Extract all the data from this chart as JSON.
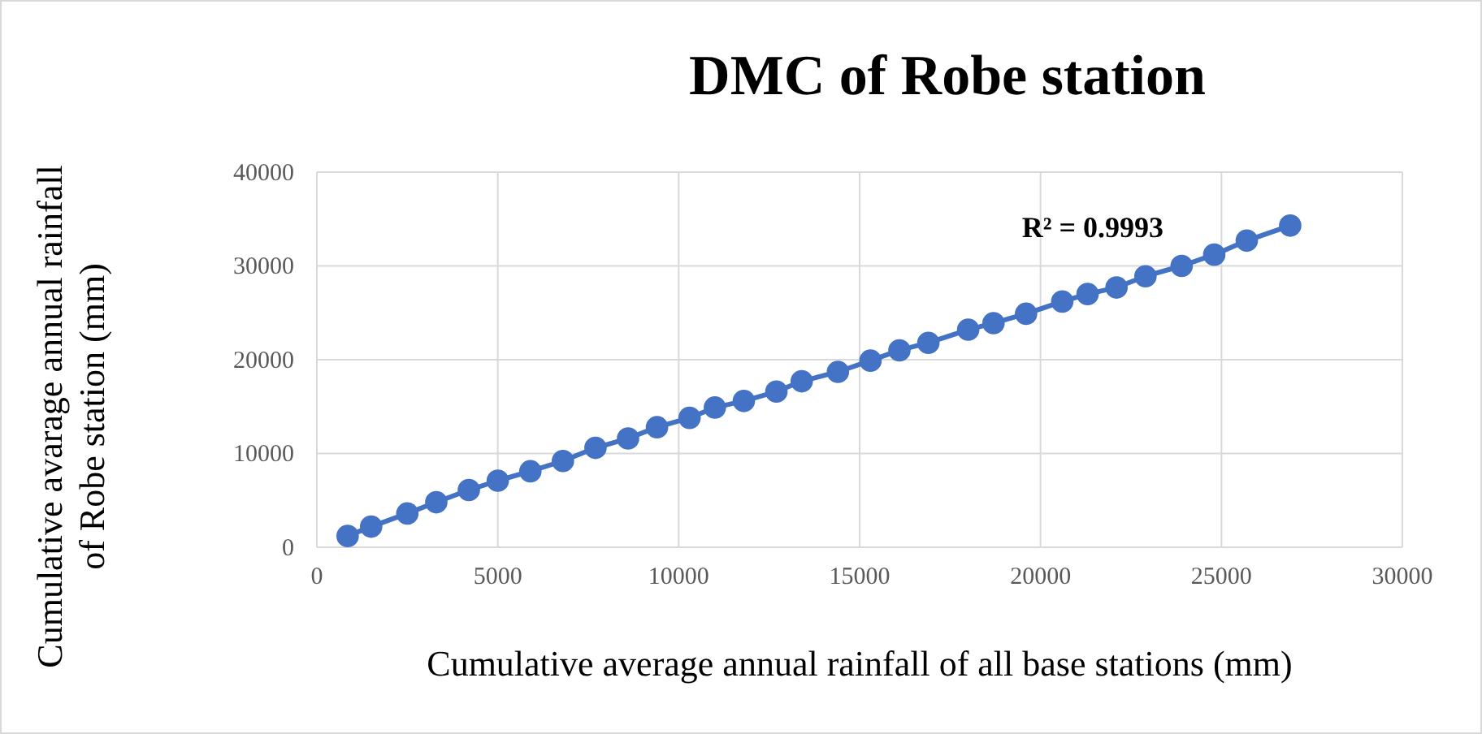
{
  "chart_data": {
    "type": "line",
    "title": "DMC of Robe station",
    "xlabel": "Cumulative average annual rainfall of all base stations (mm)",
    "ylabel": "Cumulative avarage annual rainfall of Robe station (mm)",
    "x": [
      850,
      1500,
      2500,
      3300,
      4200,
      5000,
      5900,
      6800,
      7700,
      8600,
      9400,
      10300,
      11000,
      11800,
      12700,
      13400,
      14400,
      15300,
      16100,
      16900,
      18000,
      18700,
      19600,
      20600,
      21300,
      22100,
      22900,
      23900,
      24800,
      25700,
      26900
    ],
    "series": [
      {
        "color": "#4472c4",
        "values": [
          1200,
          2200,
          3600,
          4800,
          6100,
          7100,
          8100,
          9200,
          10600,
          11600,
          12800,
          13800,
          14900,
          15600,
          16600,
          17700,
          18700,
          19900,
          21000,
          21800,
          23200,
          23900,
          24900,
          26200,
          27000,
          27700,
          28900,
          30000,
          31200,
          32700,
          34300
        ]
      }
    ],
    "xlim": [
      0,
      30000
    ],
    "xticks": [
      0,
      5000,
      10000,
      15000,
      20000,
      25000,
      30000
    ],
    "ylim": [
      0,
      40000
    ],
    "yticks": [
      0,
      10000,
      20000,
      30000,
      40000
    ],
    "grid": true,
    "marker": "circle",
    "line_style": "solid",
    "annotations": [
      "R² = 0.9993"
    ]
  }
}
